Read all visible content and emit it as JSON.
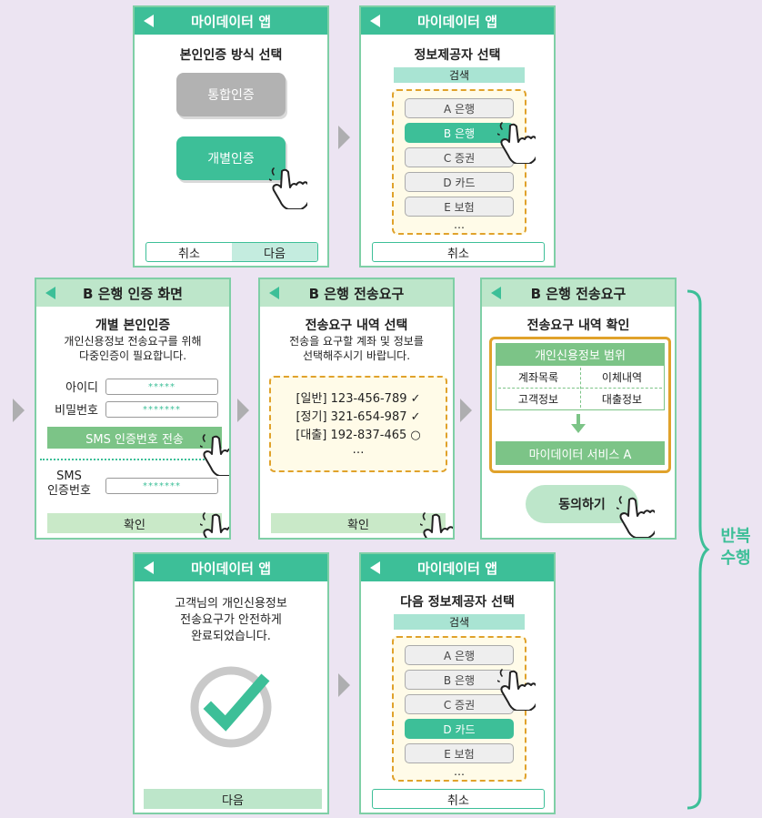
{
  "screens": {
    "s1": {
      "header": "마이데이터 앱",
      "title": "본인인증 방식 선택",
      "btn_integrated": "통합인증",
      "btn_individual": "개별인증",
      "cancel": "취소",
      "next": "다음"
    },
    "s2": {
      "header": "마이데이터 앱",
      "title": "정보제공자 선택",
      "search": "검색",
      "items": [
        "A 은행",
        "B 은행",
        "C 증권",
        "D 카드",
        "E 보험"
      ],
      "ellipsis": "…",
      "cancel": "취소"
    },
    "s3": {
      "header": "B 은행 인증 화면",
      "title": "개별 본인인증",
      "desc_line1": "개인신용정보 전송요구를 위해",
      "desc_line2": "다중인증이 필요합니다.",
      "id_label": "아이디",
      "id_value": "*****",
      "pw_label": "비밀번호",
      "pw_value": "*******",
      "sms_button": "SMS 인증번호 전송",
      "sms_label_line1": "SMS",
      "sms_label_line2": "인증번호",
      "sms_value": "*******",
      "confirm": "확인"
    },
    "s4": {
      "header": "B 은행 전송요구",
      "title": "전송요구 내역 선택",
      "desc_line1": "전송을 요구할 계좌 및 정보를",
      "desc_line2": "선택해주시기 바랍니다.",
      "rows": [
        "[일반] 123-456-789 ✓",
        "[정기] 321-654-987 ✓",
        "[대출] 192-837-465 ○"
      ],
      "ellipsis": "…",
      "confirm": "확인"
    },
    "s5": {
      "header": "B 은행 전송요구",
      "title": "전송요구 내역 확인",
      "scope_title": "개인신용정보 범위",
      "cells": [
        "계좌목록",
        "이체내역",
        "고객정보",
        "대출정보"
      ],
      "service": "마이데이터 서비스 A",
      "agree": "동의하기"
    },
    "s6": {
      "header": "마이데이터 앱",
      "line1": "고객님의 개인신용정보",
      "line2": "전송요구가 안전하게",
      "line3": "완료되었습니다.",
      "next": "다음"
    },
    "s7": {
      "header": "마이데이터 앱",
      "title": "다음 정보제공자 선택",
      "search": "검색",
      "items": [
        "A 은행",
        "B 은행",
        "C 증권",
        "D 카드",
        "E 보험"
      ],
      "ellipsis": "…",
      "cancel": "취소"
    }
  },
  "repeat_label_line1": "반복",
  "repeat_label_line2": "수행",
  "colors": {
    "teal": "#3dbf98",
    "light_green": "#bde6ca",
    "orange": "#e0a22b",
    "gray": "#aeaeb0",
    "background": "#ece4f2"
  }
}
